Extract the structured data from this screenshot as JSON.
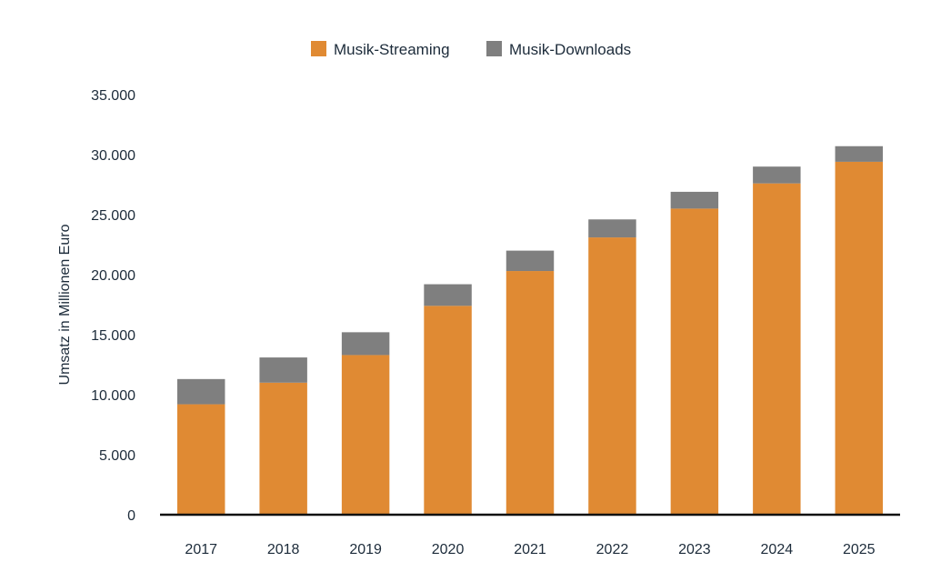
{
  "chart_data": {
    "type": "bar",
    "stacked": true,
    "categories": [
      "2017",
      "2018",
      "2019",
      "2020",
      "2021",
      "2022",
      "2023",
      "2024",
      "2025"
    ],
    "series": [
      {
        "name": "Musik-Streaming",
        "color": "#e08a33",
        "values": [
          9200,
          11000,
          13300,
          17400,
          20300,
          23100,
          25500,
          27600,
          29400
        ]
      },
      {
        "name": "Musik-Downloads",
        "color": "#7f7f7f",
        "values": [
          2100,
          2100,
          1900,
          1800,
          1700,
          1500,
          1400,
          1400,
          1300
        ]
      }
    ],
    "ylabel": "Umsatz in Millionen Euro",
    "xlabel": "",
    "ylim": [
      0,
      35000
    ],
    "yticks": [
      "0",
      "5.000",
      "10.000",
      "15.000",
      "20.000",
      "25.000",
      "30.000",
      "35.000"
    ],
    "grid": false,
    "legend_position": "top-center"
  }
}
